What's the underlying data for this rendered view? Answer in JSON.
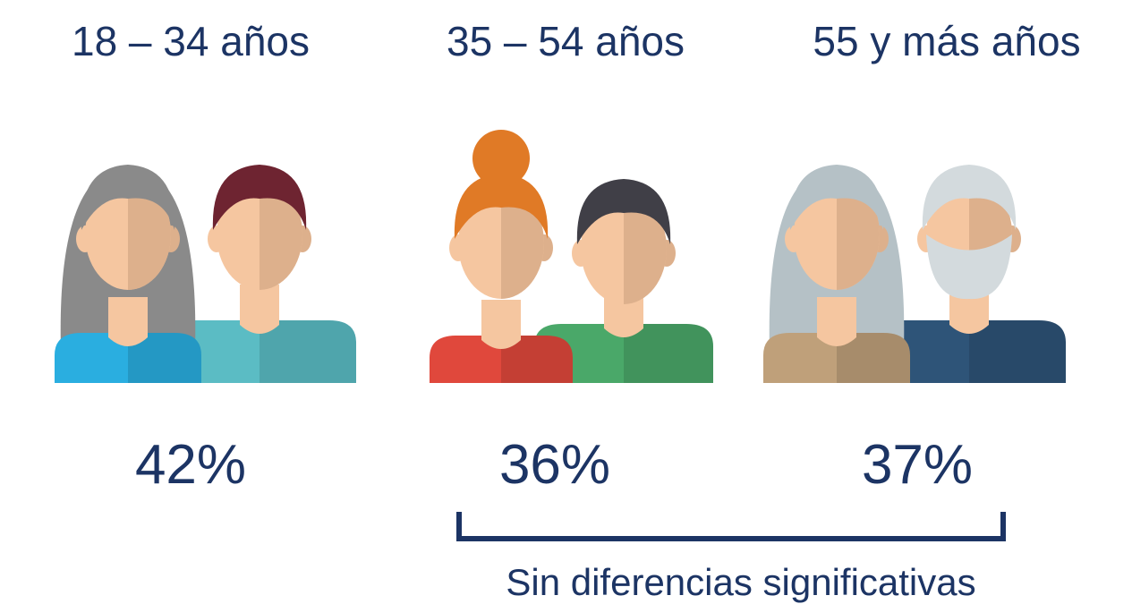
{
  "groups": [
    {
      "label": "18 – 34 años",
      "value": "42%"
    },
    {
      "label": "35 – 54 años",
      "value": "36%"
    },
    {
      "label": "55 y más años",
      "value": "37%"
    }
  ],
  "note": "Sin diferencias significativas"
}
